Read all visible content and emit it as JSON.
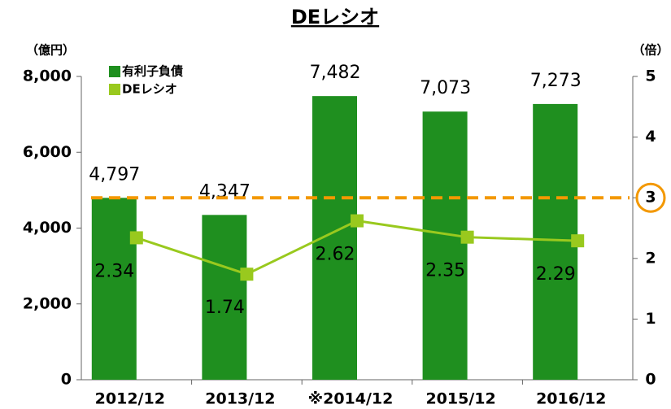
{
  "chart_data": {
    "type": "bar_line",
    "title": "DEレシオ",
    "y_label": "（億円）",
    "y2_label": "（倍）",
    "categories": [
      "2012/12",
      "2013/12",
      "※2014/12",
      "2015/12",
      "2016/12"
    ],
    "series": [
      {
        "name": "有利子負債",
        "type": "bar",
        "color": "#1f8f1f",
        "values": [
          4797,
          4347,
          7482,
          7073,
          7273
        ],
        "value_labels": [
          "4,797",
          "4,347",
          "7,482",
          "7,073",
          "7,273"
        ]
      },
      {
        "name": "DEレシオ",
        "type": "line",
        "axis": "y2",
        "color": "#99c91e",
        "values": [
          2.34,
          1.74,
          2.62,
          2.35,
          2.29
        ]
      }
    ],
    "ylim": [
      0,
      8000
    ],
    "yticks": [
      0,
      {
        "value": 2000,
        "label": "2,000"
      },
      {
        "value": 4000,
        "label": "4,000"
      },
      {
        "value": 6000,
        "label": "6,000"
      },
      {
        "value": 8000,
        "label": "8,000"
      }
    ],
    "y2lim": [
      0,
      5
    ],
    "y2ticks": [
      0,
      1,
      2,
      3,
      4,
      5
    ],
    "reference_line": {
      "value": 3,
      "axis": "y2",
      "color": "#f39800"
    },
    "grid": false,
    "legend": "top-left"
  }
}
